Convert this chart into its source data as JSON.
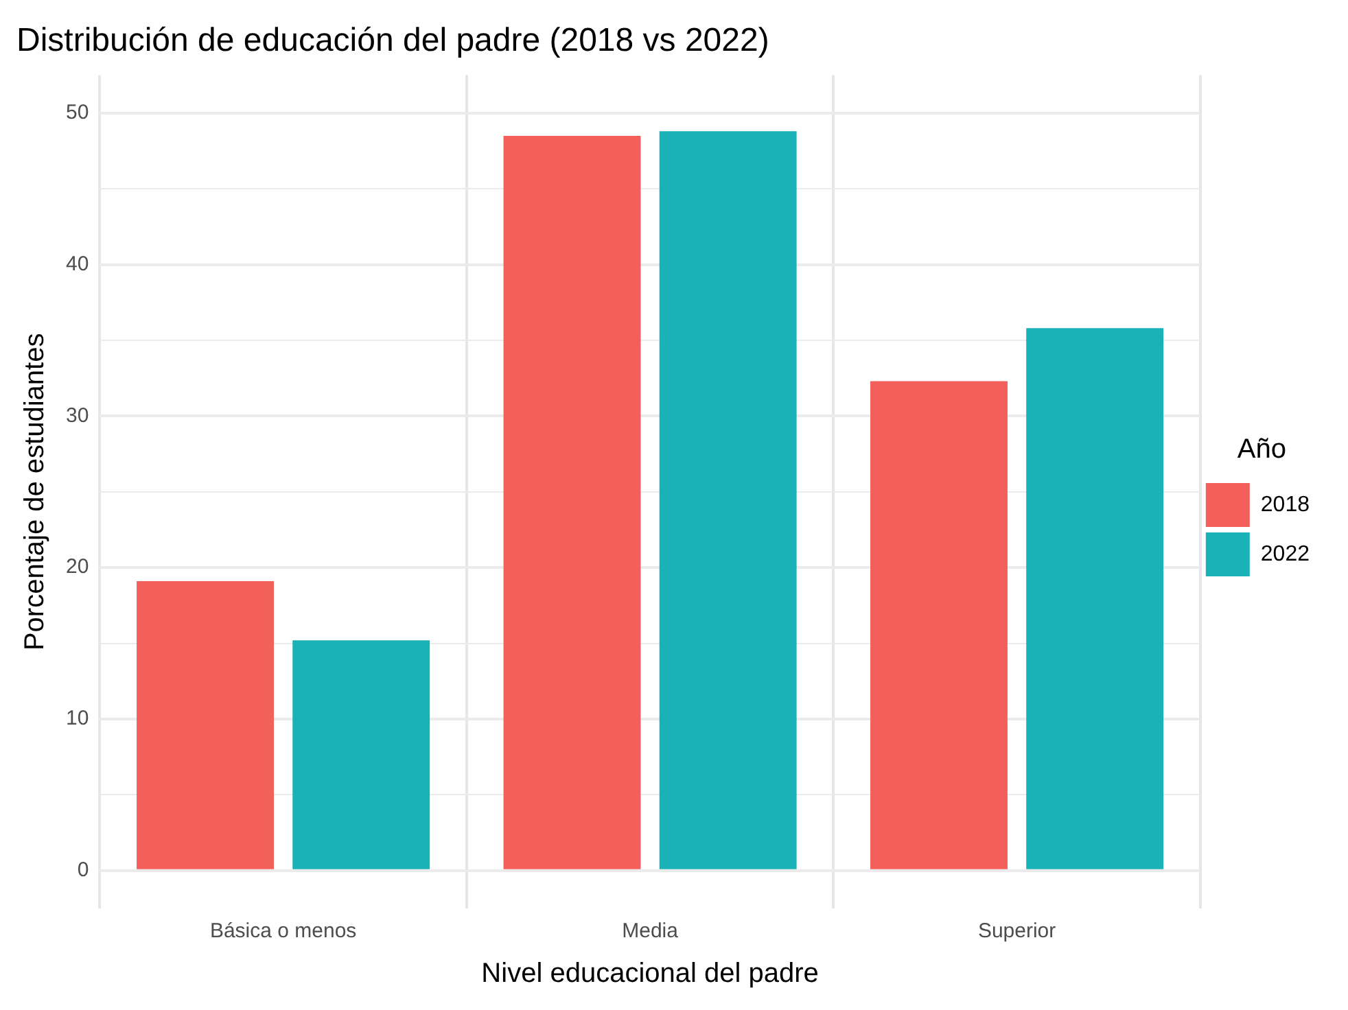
{
  "chart_data": {
    "type": "bar",
    "title": "Distribución de educación del padre (2018 vs 2022)",
    "xlabel": "Nivel educacional del padre",
    "ylabel": "Porcentaje de estudiantes",
    "legend_title": "Año",
    "categories": [
      "Básica o menos",
      "Media",
      "Superior"
    ],
    "series": [
      {
        "name": "2018",
        "color": "#f35f5a",
        "values": [
          19.1,
          48.5,
          32.3
        ]
      },
      {
        "name": "2022",
        "color": "#19b3b7",
        "values": [
          15.2,
          48.8,
          35.8
        ]
      }
    ],
    "ylim": [
      -2.5,
      52.5
    ],
    "yticks": [
      0,
      {
        "value": 5,
        "label": null
      },
      10,
      {
        "value": 15,
        "label": null
      },
      20,
      {
        "value": 25,
        "label": null
      },
      30,
      {
        "value": 35,
        "label": null
      },
      40,
      {
        "value": 45,
        "label": null
      },
      50
    ],
    "grid": true,
    "legend": "right"
  }
}
